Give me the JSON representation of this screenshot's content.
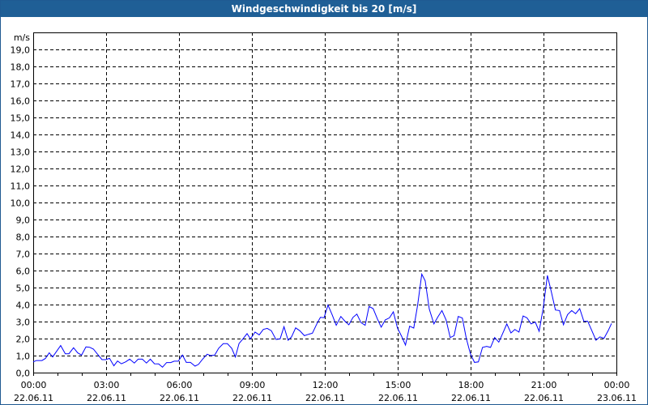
{
  "window": {
    "title": "Windgeschwindigkeit bis 20 [m/s]"
  },
  "chart_data": {
    "type": "line",
    "title": "Windgeschwindigkeit bis 20 [m/s]",
    "ylabel": "m/s",
    "xlabel": "",
    "ylim": [
      0,
      20
    ],
    "xlim_hours": [
      0,
      24
    ],
    "grid": true,
    "y_ticks": [
      "0,0",
      "1,0",
      "2,0",
      "3,0",
      "4,0",
      "5,0",
      "6,0",
      "7,0",
      "8,0",
      "9,0",
      "10,0",
      "11,0",
      "12,0",
      "13,0",
      "14,0",
      "15,0",
      "16,0",
      "17,0",
      "18,0",
      "19,0"
    ],
    "x_ticks": [
      {
        "time": "00:00",
        "date": "22.06.11"
      },
      {
        "time": "03:00",
        "date": "22.06.11"
      },
      {
        "time": "06:00",
        "date": "22.06.11"
      },
      {
        "time": "09:00",
        "date": "22.06.11"
      },
      {
        "time": "12:00",
        "date": "22.06.11"
      },
      {
        "time": "15:00",
        "date": "22.06.11"
      },
      {
        "time": "18:00",
        "date": "22.06.11"
      },
      {
        "time": "21:00",
        "date": "22.06.11"
      },
      {
        "time": "00:00",
        "date": "23.06.11"
      }
    ],
    "line_color": "#0000ff",
    "series": [
      {
        "name": "Windgeschwindigkeit",
        "x_hours": [
          0,
          0.13,
          0.36,
          0.5,
          0.66,
          0.8,
          1.13,
          1.32,
          1.47,
          1.66,
          1.83,
          1.99,
          2.17,
          2.32,
          2.48,
          2.63,
          2.83,
          2.99,
          3.14,
          3.32,
          3.47,
          3.63,
          3.8,
          3.97,
          4.16,
          4.32,
          4.49,
          4.66,
          4.82,
          4.99,
          5.16,
          5.32,
          5.49,
          5.66,
          5.8,
          5.97,
          6.14,
          6.3,
          6.47,
          6.66,
          6.8,
          6.97,
          7.16,
          7.3,
          7.47,
          7.63,
          7.82,
          7.99,
          8.17,
          8.32,
          8.47,
          8.63,
          8.8,
          8.94,
          9.13,
          9.3,
          9.47,
          9.63,
          9.8,
          9.99,
          10.16,
          10.32,
          10.49,
          10.63,
          10.8,
          10.97,
          11.16,
          11.32,
          11.49,
          11.69,
          11.82,
          11.97,
          12.13,
          12.3,
          12.47,
          12.66,
          12.83,
          12.99,
          13.16,
          13.32,
          13.49,
          13.66,
          13.82,
          13.99,
          14.16,
          14.32,
          14.49,
          14.66,
          14.82,
          14.99,
          15.16,
          15.32,
          15.49,
          15.66,
          15.82,
          15.99,
          16.13,
          16.3,
          16.49,
          16.66,
          16.82,
          16.99,
          17.16,
          17.32,
          17.49,
          17.66,
          17.82,
          17.99,
          18.16,
          18.32,
          18.49,
          18.66,
          18.82,
          18.99,
          19.16,
          19.32,
          19.49,
          19.66,
          19.82,
          19.99,
          20.16,
          20.32,
          20.49,
          20.66,
          20.82,
          20.99,
          21.16,
          21.32,
          21.49,
          21.66,
          21.82,
          21.99,
          22.16,
          22.32,
          22.49,
          22.66,
          22.82,
          22.99,
          23.16,
          23.32,
          23.49,
          23.66,
          23.8
        ],
        "values": [
          0.63,
          0.71,
          0.71,
          0.83,
          1.16,
          0.92,
          1.59,
          1.11,
          1.11,
          1.46,
          1.16,
          1.03,
          1.51,
          1.49,
          1.38,
          1.11,
          0.76,
          0.76,
          0.84,
          0.4,
          0.68,
          0.52,
          0.63,
          0.79,
          0.56,
          0.79,
          0.79,
          0.56,
          0.79,
          0.52,
          0.51,
          0.32,
          0.59,
          0.59,
          0.67,
          0.67,
          1.03,
          0.6,
          0.6,
          0.38,
          0.48,
          0.79,
          1.08,
          1.0,
          1.03,
          1.43,
          1.7,
          1.7,
          1.43,
          0.92,
          1.71,
          1.98,
          2.29,
          1.98,
          2.38,
          2.22,
          2.54,
          2.6,
          2.46,
          1.95,
          1.98,
          2.7,
          1.9,
          2.1,
          2.63,
          2.46,
          2.17,
          2.25,
          2.32,
          2.92,
          3.25,
          3.23,
          3.97,
          3.41,
          2.78,
          3.3,
          3.02,
          2.81,
          3.25,
          3.44,
          2.94,
          2.78,
          3.89,
          3.76,
          3.17,
          2.67,
          3.1,
          3.22,
          3.57,
          2.62,
          2.14,
          1.62,
          2.73,
          2.62,
          3.97,
          5.79,
          5.4,
          3.73,
          2.86,
          3.29,
          3.65,
          3.1,
          2.06,
          2.17,
          3.3,
          3.21,
          2.03,
          1.11,
          0.6,
          0.63,
          1.48,
          1.54,
          1.48,
          2.06,
          1.79,
          2.3,
          2.86,
          2.33,
          2.54,
          2.38,
          3.33,
          3.22,
          2.86,
          2.97,
          2.43,
          3.81,
          5.71,
          4.76,
          3.68,
          3.65,
          2.81,
          3.41,
          3.65,
          3.46,
          3.76,
          3.02,
          3.02,
          2.46,
          1.9,
          2.1,
          2.02,
          2.46,
          2.89
        ]
      }
    ]
  }
}
